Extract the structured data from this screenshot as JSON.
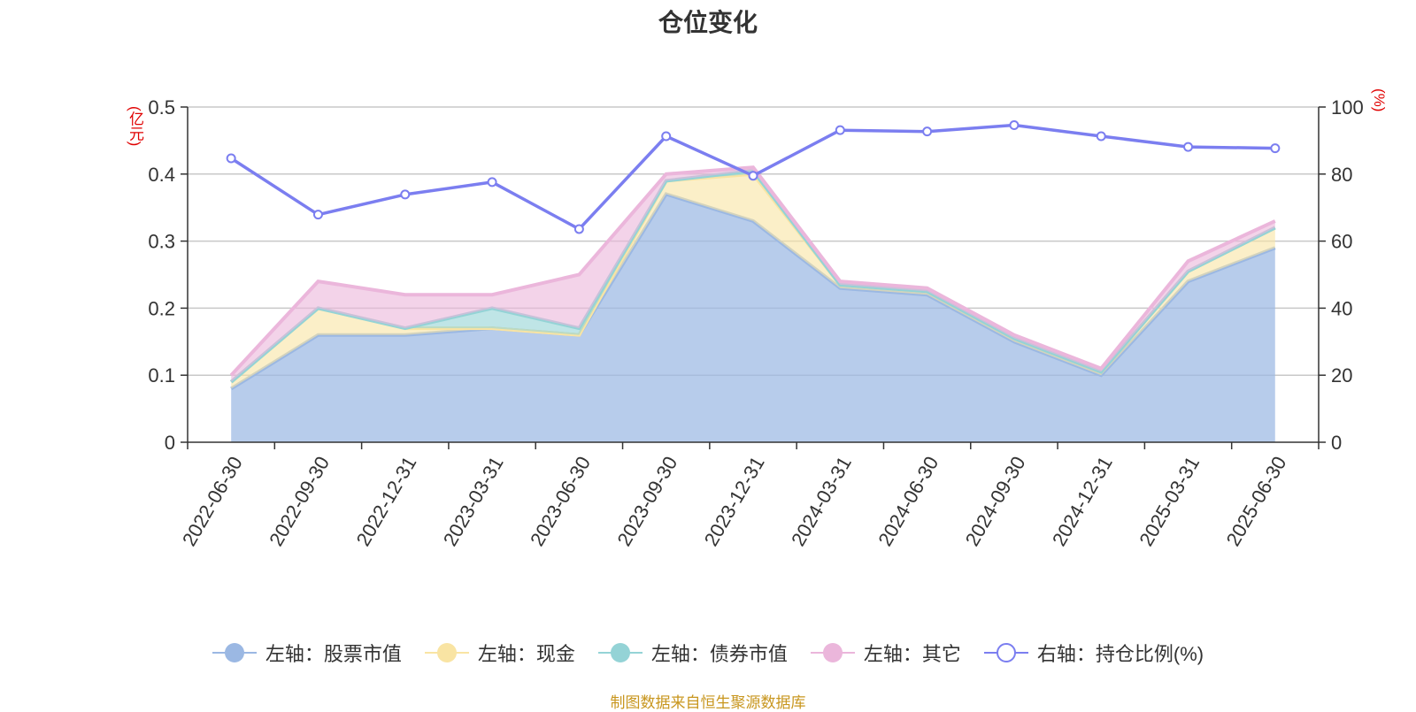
{
  "title": "仓位变化",
  "left_unit": "(亿元)",
  "right_unit": "(%)",
  "source": "制图数据来自恒生聚源数据库",
  "chart_data": {
    "type": "area",
    "categories": [
      "2022-06-30",
      "2022-09-30",
      "2022-12-31",
      "2023-03-31",
      "2023-06-30",
      "2023-09-30",
      "2023-12-31",
      "2024-03-31",
      "2024-06-30",
      "2024-09-30",
      "2024-12-31",
      "2025-03-31",
      "2025-06-30"
    ],
    "left_axis": {
      "min": 0,
      "max": 0.5,
      "ticks": [
        "0",
        "0.1",
        "0.2",
        "0.3",
        "0.4",
        "0.5"
      ]
    },
    "right_axis": {
      "min": 0,
      "max": 100,
      "ticks": [
        "0",
        "20",
        "40",
        "60",
        "80",
        "100"
      ]
    },
    "series": [
      {
        "name": "左轴：股票市值",
        "axis": "left",
        "stack": true,
        "color": "#9bb8e3",
        "values": [
          0.08,
          0.16,
          0.16,
          0.17,
          0.16,
          0.37,
          0.33,
          0.23,
          0.22,
          0.15,
          0.1,
          0.24,
          0.29
        ]
      },
      {
        "name": "左轴：现金",
        "axis": "left",
        "stack": true,
        "color": "#f9e4a3",
        "values": [
          0.01,
          0.04,
          0.01,
          0.0,
          0.0,
          0.02,
          0.07,
          0.005,
          0.005,
          0.005,
          0.005,
          0.015,
          0.03
        ]
      },
      {
        "name": "左轴：债券市值",
        "axis": "left",
        "stack": true,
        "color": "#94d3d6",
        "values": [
          0,
          0,
          0,
          0.03,
          0.01,
          0,
          0.005,
          0,
          0,
          0,
          0,
          0,
          0
        ]
      },
      {
        "name": "左轴：其它",
        "axis": "left",
        "stack": true,
        "color": "#ebb6db",
        "values": [
          0.01,
          0.04,
          0.05,
          0.02,
          0.08,
          0.01,
          0.005,
          0.005,
          0.005,
          0.005,
          0.005,
          0.015,
          0.01
        ]
      },
      {
        "name": "右轴：持仓比例(%)",
        "axis": "right",
        "stack": false,
        "color": "#7b7ef0",
        "values": [
          84.7,
          67.9,
          73.9,
          77.6,
          63.6,
          91.3,
          79.5,
          93.1,
          92.7,
          94.6,
          91.3,
          88.1,
          87.7
        ]
      }
    ],
    "legend_position": "bottom",
    "grid": true
  }
}
